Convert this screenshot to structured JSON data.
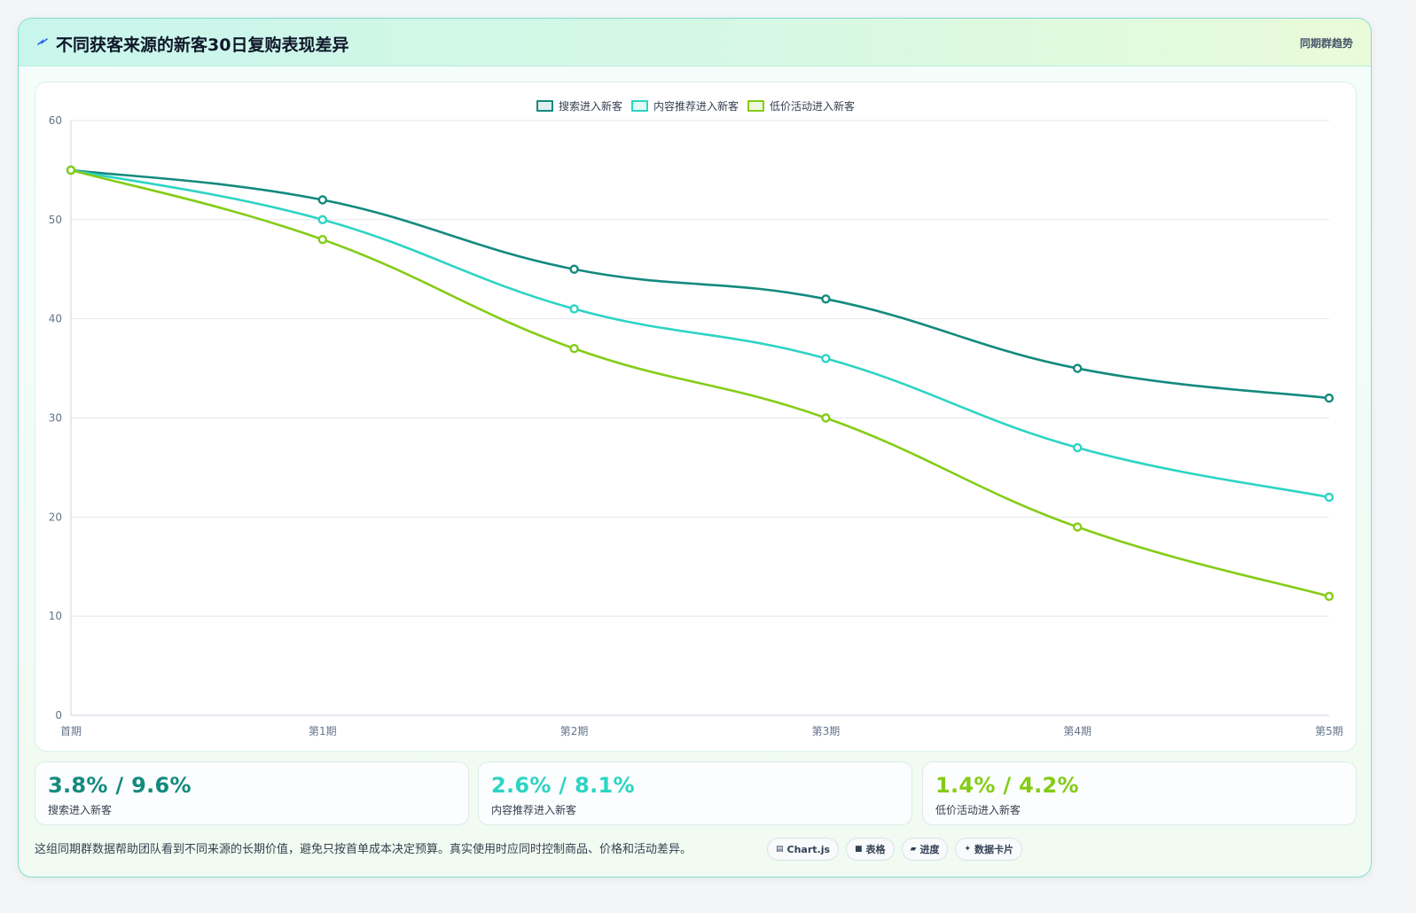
{
  "header": {
    "title": "不同获客来源的新客30日复购表现差异",
    "tag": "同期群趋势"
  },
  "chart_data": {
    "type": "line",
    "categories": [
      "首期",
      "第1期",
      "第2期",
      "第3期",
      "第4期",
      "第5期"
    ],
    "ylim": [
      0,
      60
    ],
    "yticks": [
      0,
      10,
      20,
      30,
      40,
      50,
      60
    ],
    "grid": true,
    "legend_position": "top-center",
    "series": [
      {
        "name": "搜索进入新客",
        "color": "#138a7e",
        "values": [
          55,
          52,
          45,
          42,
          35,
          32
        ]
      },
      {
        "name": "内容推荐进入新客",
        "color": "#2dd4c4",
        "values": [
          55,
          50,
          41,
          36,
          27,
          22
        ]
      },
      {
        "name": "低价活动进入新客",
        "color": "#84cc16",
        "values": [
          55,
          48,
          37,
          30,
          19,
          12
        ]
      }
    ]
  },
  "stats": [
    {
      "value": "3.8% / 9.6%",
      "label": "搜索进入新客",
      "color": "#138a7e"
    },
    {
      "value": "2.6% / 8.1%",
      "label": "内容推荐进入新客",
      "color": "#2dd4c4"
    },
    {
      "value": "1.4% / 4.2%",
      "label": "低价活动进入新客",
      "color": "#84cc16"
    }
  ],
  "footer": {
    "note": "这组同期群数据帮助团队看到不同来源的长期价值，避免只按首单成本决定预算。真实使用时应同时控制商品、价格和活动差异。",
    "chips": [
      {
        "icon": "▤",
        "label": "Chart.js"
      },
      {
        "icon": "■",
        "label": "表格"
      },
      {
        "icon": "▰",
        "label": "进度"
      },
      {
        "icon": "✦",
        "label": "数据卡片"
      }
    ]
  }
}
